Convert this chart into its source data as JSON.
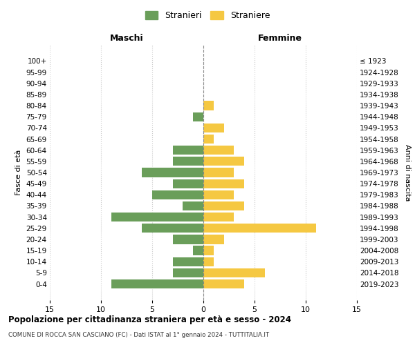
{
  "age_groups_bottom_to_top": [
    "0-4",
    "5-9",
    "10-14",
    "15-19",
    "20-24",
    "25-29",
    "30-34",
    "35-39",
    "40-44",
    "45-49",
    "50-54",
    "55-59",
    "60-64",
    "65-69",
    "70-74",
    "75-79",
    "80-84",
    "85-89",
    "90-94",
    "95-99",
    "100+"
  ],
  "birth_years_bottom_to_top": [
    "2019-2023",
    "2014-2018",
    "2009-2013",
    "2004-2008",
    "1999-2003",
    "1994-1998",
    "1989-1993",
    "1984-1988",
    "1979-1983",
    "1974-1978",
    "1969-1973",
    "1964-1968",
    "1959-1963",
    "1954-1958",
    "1949-1953",
    "1944-1948",
    "1939-1943",
    "1934-1938",
    "1929-1933",
    "1924-1928",
    "≤ 1923"
  ],
  "males_bottom_to_top": [
    9,
    3,
    3,
    1,
    3,
    6,
    9,
    2,
    5,
    3,
    6,
    3,
    3,
    0,
    0,
    1,
    0,
    0,
    0,
    0,
    0
  ],
  "females_bottom_to_top": [
    4,
    6,
    1,
    1,
    2,
    11,
    3,
    4,
    3,
    4,
    3,
    4,
    3,
    1,
    2,
    0,
    1,
    0,
    0,
    0,
    0
  ],
  "male_color": "#6a9e5a",
  "female_color": "#f5c842",
  "male_label": "Stranieri",
  "female_label": "Straniere",
  "title": "Popolazione per cittadinanza straniera per età e sesso - 2024",
  "subtitle": "COMUNE DI ROCCA SAN CASCIANO (FC) - Dati ISTAT al 1° gennaio 2024 - TUTTITALIA.IT",
  "xlabel_left": "Maschi",
  "xlabel_right": "Femmine",
  "ylabel_left": "Fasce di età",
  "ylabel_right": "Anni di nascita",
  "xlim": 15,
  "background_color": "#ffffff",
  "grid_color": "#cccccc",
  "bar_height": 0.82
}
